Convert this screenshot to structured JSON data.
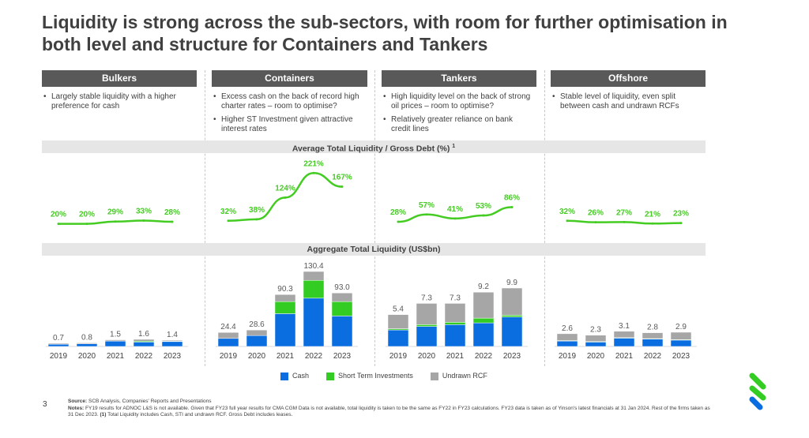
{
  "title": "Liquidity is strong across the sub-sectors, with room for further optimisation in both level and structure for Containers and Tankers",
  "sectors": [
    {
      "name": "Bulkers",
      "bullets": [
        "Largely stable liquidity with a higher preference for cash"
      ]
    },
    {
      "name": "Containers",
      "bullets": [
        "Excess cash on the back of record high charter rates – room to optimise?",
        "Higher ST Investment given attractive interest rates"
      ]
    },
    {
      "name": "Tankers",
      "bullets": [
        "High liquidity level on the back of strong oil prices – room to optimise?",
        "Relatively greater reliance on bank credit lines"
      ]
    },
    {
      "name": "Offshore",
      "bullets": [
        "Stable level of liquidity, even split between cash and undrawn RCFs"
      ]
    }
  ],
  "colors": {
    "cash": "#0a6ee0",
    "sti": "#33cc22",
    "rcf": "#a6a6a6",
    "line": "#44cc22",
    "header": "#595959"
  },
  "chart_data": [
    {
      "type": "line",
      "title": "Average Total Liquidity / Gross Debt (%)",
      "title_sup": "1",
      "unit": "%",
      "categories": [
        "2019",
        "2020",
        "2021",
        "2022",
        "2023"
      ],
      "series": [
        {
          "sector": "Bulkers",
          "values": [
            20,
            20,
            29,
            33,
            28
          ]
        },
        {
          "sector": "Containers",
          "values": [
            32,
            38,
            124,
            221,
            167
          ]
        },
        {
          "sector": "Tankers",
          "values": [
            28,
            57,
            41,
            53,
            86
          ]
        },
        {
          "sector": "Offshore",
          "values": [
            32,
            26,
            27,
            21,
            23
          ]
        }
      ]
    },
    {
      "type": "bar",
      "stacked": true,
      "title": "Aggregate Total Liquidity (US$bn)",
      "categories": [
        "2019",
        "2020",
        "2021",
        "2022",
        "2023"
      ],
      "legend": [
        "Cash",
        "Short Term Investments",
        "Undrawn RCF"
      ],
      "legend_position": "bottom",
      "panels": [
        {
          "sector": "Bulkers",
          "totals": [
            "0.7",
            "0.8",
            "1.5",
            "1.6",
            "1.4"
          ],
          "cash": [
            0.5,
            0.6,
            1.2,
            1.0,
            1.1
          ],
          "sti": [
            0,
            0,
            0.05,
            0.2,
            0.1
          ],
          "rcf": [
            0.2,
            0.2,
            0.25,
            0.4,
            0.2
          ]
        },
        {
          "sector": "Containers",
          "totals": [
            "24.4",
            "28.6",
            "90.3",
            "130.4",
            "93.0"
          ],
          "cash": [
            14,
            19,
            57,
            84,
            53
          ],
          "sti": [
            0,
            0,
            21,
            31,
            25
          ],
          "rcf": [
            10.4,
            9.6,
            12.3,
            15.4,
            15
          ]
        },
        {
          "sector": "Tankers",
          "totals": [
            "5.4",
            "7.3",
            "7.3",
            "9.2",
            "9.9"
          ],
          "cash": [
            2.8,
            3.4,
            3.7,
            4.0,
            5.0
          ],
          "sti": [
            0.2,
            0.3,
            0.4,
            0.8,
            0.3
          ],
          "rcf": [
            2.4,
            3.6,
            3.2,
            4.4,
            4.6
          ]
        },
        {
          "sector": "Offshore",
          "totals": [
            "2.6",
            "2.3",
            "3.1",
            "2.8",
            "2.9"
          ],
          "cash": [
            1.1,
            0.9,
            1.7,
            1.5,
            1.3
          ],
          "sti": [
            0.1,
            0.1,
            0.1,
            0.1,
            0.1
          ],
          "rcf": [
            1.4,
            1.3,
            1.3,
            1.2,
            1.5
          ]
        }
      ]
    }
  ],
  "footer": {
    "page": "3",
    "source_label": "Source:",
    "source": "SCB Analysis, Companies' Reports and Presentations",
    "notes_label": "Notes:",
    "notes": "FY19 results for ADNOC L&S is not available. Given that FY23 full year results for CMA CGM Data is not available, total liquidity is taken to be the same as FY22 in FY23 calculations. FY23 data is taken as of Yinson's latest financials at 31 Jan 2024. Rest of the firms taken as 31 Dec 2023.",
    "notes_ref": "(1)",
    "notes_tail": "Total Liquidity includes Cash, STI and undrawn RCF. Gross Debt includes leases."
  }
}
